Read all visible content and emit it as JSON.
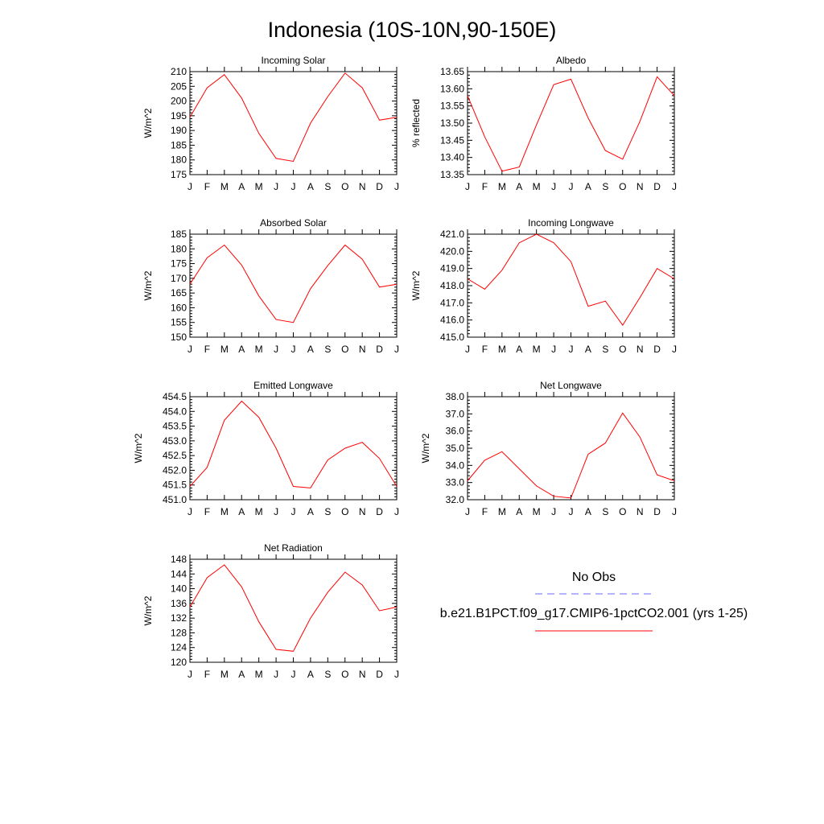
{
  "figure": {
    "title": "Indonesia (10S-10N,90-150E)"
  },
  "chart_data": [
    {
      "type": "line",
      "title": "Incoming Solar",
      "ylabel": "W/m^2",
      "xlabel": "",
      "x": [
        "J",
        "F",
        "M",
        "A",
        "M",
        "J",
        "J",
        "A",
        "S",
        "O",
        "N",
        "D",
        "J"
      ],
      "ylim": [
        175,
        210
      ],
      "yticks": [
        175,
        180,
        185,
        190,
        195,
        200,
        205,
        210
      ],
      "ytick_labels": [
        "175",
        "180",
        "185",
        "190",
        "195",
        "200",
        "205",
        "210"
      ],
      "series": [
        {
          "color": "#ff0000",
          "values": [
            194.5,
            204.5,
            209,
            201,
            189,
            180.5,
            179.5,
            192.5,
            201.5,
            209.5,
            204.5,
            193.5,
            194.5
          ]
        }
      ]
    },
    {
      "type": "line",
      "title": "Albedo",
      "ylabel": "% reflected",
      "xlabel": "",
      "x": [
        "J",
        "F",
        "M",
        "A",
        "M",
        "J",
        "J",
        "A",
        "S",
        "O",
        "N",
        "D",
        "J"
      ],
      "ylim": [
        13.35,
        13.65
      ],
      "yticks": [
        13.35,
        13.4,
        13.45,
        13.5,
        13.55,
        13.6,
        13.65
      ],
      "ytick_labels": [
        "13.35",
        "13.40",
        "13.45",
        "13.50",
        "13.55",
        "13.60",
        "13.65"
      ],
      "series": [
        {
          "color": "#ff0000",
          "values": [
            13.58,
            13.46,
            13.36,
            13.372,
            13.495,
            13.612,
            13.628,
            13.515,
            13.42,
            13.395,
            13.505,
            13.635,
            13.58
          ]
        }
      ]
    },
    {
      "type": "line",
      "title": "Absorbed Solar",
      "ylabel": "W/m^2",
      "xlabel": "",
      "x": [
        "J",
        "F",
        "M",
        "A",
        "M",
        "J",
        "J",
        "A",
        "S",
        "O",
        "N",
        "D",
        "J"
      ],
      "ylim": [
        150,
        185
      ],
      "yticks": [
        150,
        155,
        160,
        165,
        170,
        175,
        180,
        185
      ],
      "ytick_labels": [
        "150",
        "155",
        "160",
        "165",
        "170",
        "175",
        "180",
        "185"
      ],
      "series": [
        {
          "color": "#ff0000",
          "values": [
            168,
            177,
            181.3,
            174.5,
            164,
            156,
            155,
            166.5,
            174.3,
            181.3,
            176.5,
            167,
            168
          ]
        }
      ]
    },
    {
      "type": "line",
      "title": "Incoming Longwave",
      "ylabel": "W/m^2",
      "xlabel": "",
      "x": [
        "J",
        "F",
        "M",
        "A",
        "M",
        "J",
        "J",
        "A",
        "S",
        "O",
        "N",
        "D",
        "J"
      ],
      "ylim": [
        415.0,
        421.0
      ],
      "yticks": [
        415,
        416,
        417,
        418,
        419,
        420,
        421
      ],
      "ytick_labels": [
        "415.0",
        "416.0",
        "417.0",
        "418.0",
        "419.0",
        "420.0",
        "421.0"
      ],
      "series": [
        {
          "color": "#ff0000",
          "values": [
            418.4,
            417.8,
            418.9,
            420.5,
            421,
            420.5,
            419.4,
            416.8,
            417.1,
            415.7,
            417.3,
            419,
            418.4
          ]
        }
      ]
    },
    {
      "type": "line",
      "title": "Emitted Longwave",
      "ylabel": "W/m^2",
      "xlabel": "",
      "x": [
        "J",
        "F",
        "M",
        "A",
        "M",
        "J",
        "J",
        "A",
        "S",
        "O",
        "N",
        "D",
        "J"
      ],
      "ylim": [
        451.0,
        454.5
      ],
      "yticks": [
        451,
        451.5,
        452,
        452.5,
        453,
        453.5,
        454,
        454.5
      ],
      "ytick_labels": [
        "451.0",
        "451.5",
        "452.0",
        "452.5",
        "453.0",
        "453.5",
        "454.0",
        "454.5"
      ],
      "series": [
        {
          "color": "#ff0000",
          "values": [
            451.45,
            452.1,
            453.7,
            454.35,
            453.8,
            452.75,
            451.45,
            451.4,
            452.35,
            452.75,
            452.95,
            452.4,
            451.45
          ]
        }
      ]
    },
    {
      "type": "line",
      "title": "Net Longwave",
      "ylabel": "W/m^2",
      "xlabel": "",
      "x": [
        "J",
        "F",
        "M",
        "A",
        "M",
        "J",
        "J",
        "A",
        "S",
        "O",
        "N",
        "D",
        "J"
      ],
      "ylim": [
        32.0,
        38.0
      ],
      "yticks": [
        32,
        33,
        34,
        35,
        36,
        37,
        38
      ],
      "ytick_labels": [
        "32.0",
        "33.0",
        "34.0",
        "35.0",
        "36.0",
        "37.0",
        "38.0"
      ],
      "series": [
        {
          "color": "#ff0000",
          "values": [
            33.1,
            34.3,
            34.8,
            33.8,
            32.8,
            32.2,
            32.1,
            34.65,
            35.3,
            37.05,
            35.65,
            33.45,
            33.1
          ]
        }
      ]
    },
    {
      "type": "line",
      "title": "Net Radiation",
      "ylabel": "W/m^2",
      "xlabel": "",
      "x": [
        "J",
        "F",
        "M",
        "A",
        "M",
        "J",
        "J",
        "A",
        "S",
        "O",
        "N",
        "D",
        "J"
      ],
      "ylim": [
        120,
        148
      ],
      "yticks": [
        120,
        124,
        128,
        132,
        136,
        140,
        144,
        148
      ],
      "ytick_labels": [
        "120",
        "124",
        "128",
        "132",
        "136",
        "140",
        "144",
        "148"
      ],
      "series": [
        {
          "color": "#ff0000",
          "values": [
            135,
            143,
            146.5,
            140.5,
            131,
            123.5,
            123,
            132,
            139,
            144.5,
            141,
            134,
            135
          ]
        }
      ]
    }
  ],
  "legend": {
    "items": [
      {
        "label": "No Obs",
        "color": "#6a6aff",
        "style": "dashed"
      },
      {
        "label": "b.e21.B1PCT.f09_g17.CMIP6-1pctCO2.001 (yrs 1-25)",
        "color": "#ff0000",
        "style": "solid"
      }
    ]
  }
}
